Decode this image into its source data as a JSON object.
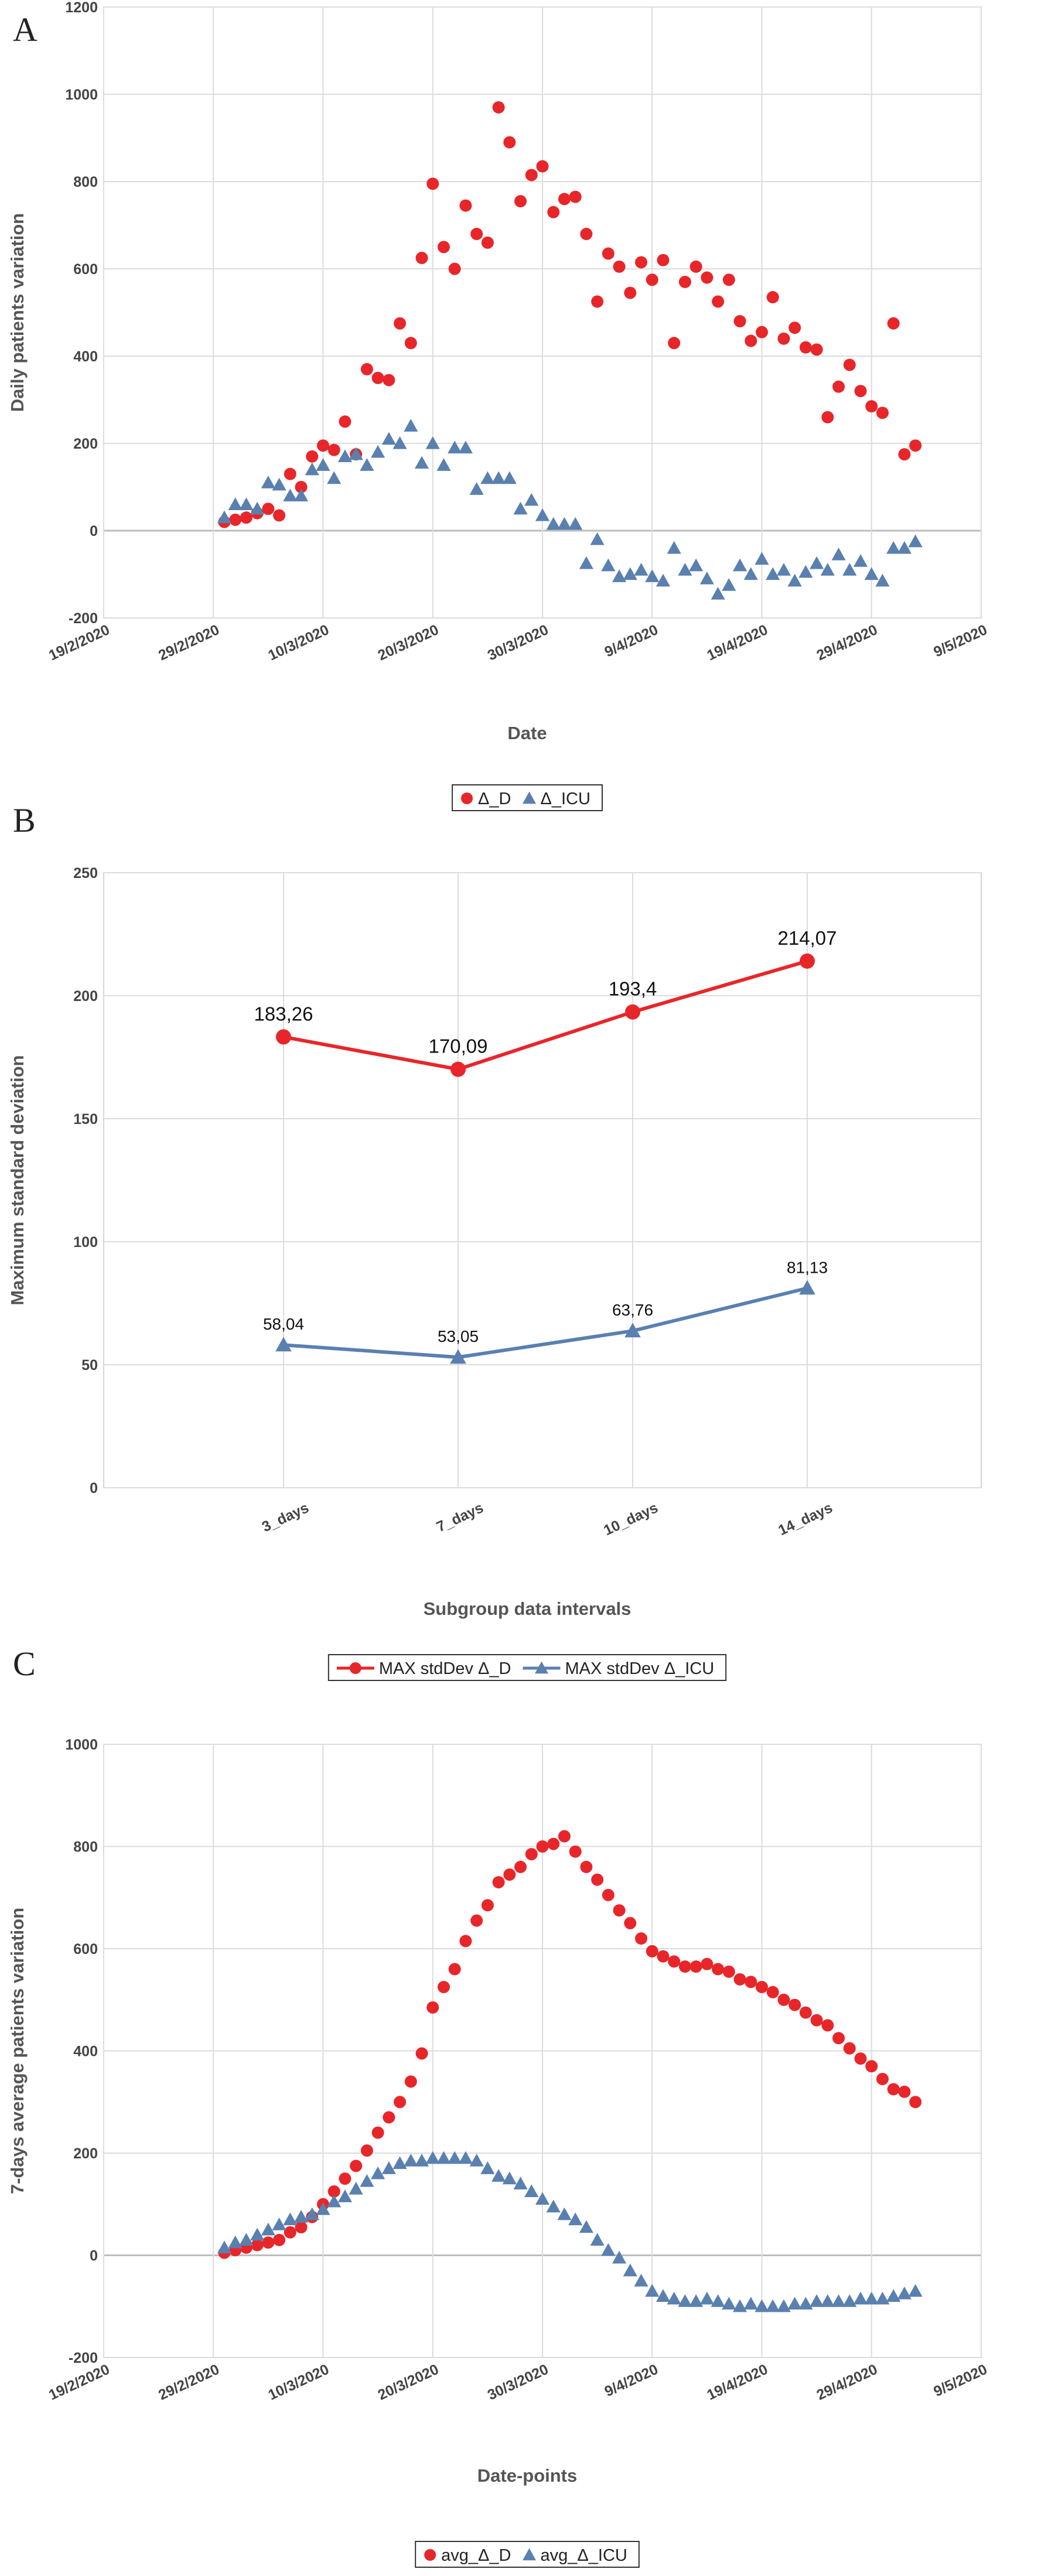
{
  "panels": [
    "A",
    "B",
    "C"
  ],
  "chart_data": [
    {
      "type": "scatter",
      "panel": "A",
      "xlabel": "Date",
      "ylabel": "Daily patients variation",
      "x_ticks": [
        "19/2/2020",
        "29/2/2020",
        "10/3/2020",
        "20/3/2020",
        "30/3/2020",
        "9/4/2020",
        "19/4/2020",
        "29/4/2020",
        "9/5/2020"
      ],
      "ylim": [
        -200,
        1200
      ],
      "y_ticks": [
        -200,
        0,
        200,
        400,
        600,
        800,
        1000,
        1200
      ],
      "grid": true,
      "legend": "bottom",
      "start_date": "2020-02-19",
      "series": [
        {
          "name": "Δ_D",
          "color": "#e8262a",
          "marker": "circle",
          "x": [
            "2020-03-01",
            "2020-03-02",
            "2020-03-03",
            "2020-03-04",
            "2020-03-05",
            "2020-03-06",
            "2020-03-07",
            "2020-03-08",
            "2020-03-09",
            "2020-03-10",
            "2020-03-11",
            "2020-03-12",
            "2020-03-13",
            "2020-03-14",
            "2020-03-15",
            "2020-03-16",
            "2020-03-17",
            "2020-03-18",
            "2020-03-19",
            "2020-03-20",
            "2020-03-21",
            "2020-03-22",
            "2020-03-23",
            "2020-03-24",
            "2020-03-25",
            "2020-03-26",
            "2020-03-27",
            "2020-03-28",
            "2020-03-29",
            "2020-03-30",
            "2020-03-31",
            "2020-04-01",
            "2020-04-02",
            "2020-04-03",
            "2020-04-04",
            "2020-04-05",
            "2020-04-06",
            "2020-04-07",
            "2020-04-08",
            "2020-04-09",
            "2020-04-10",
            "2020-04-11",
            "2020-04-12",
            "2020-04-13",
            "2020-04-14",
            "2020-04-15",
            "2020-04-16",
            "2020-04-17",
            "2020-04-18",
            "2020-04-19",
            "2020-04-20",
            "2020-04-21",
            "2020-04-22",
            "2020-04-23",
            "2020-04-24",
            "2020-04-25",
            "2020-04-26",
            "2020-04-27",
            "2020-04-28",
            "2020-04-29",
            "2020-04-30",
            "2020-05-01",
            "2020-05-02",
            "2020-05-03"
          ],
          "values": [
            20,
            25,
            30,
            40,
            50,
            35,
            130,
            100,
            170,
            195,
            185,
            250,
            175,
            370,
            350,
            345,
            475,
            430,
            625,
            795,
            650,
            600,
            745,
            680,
            660,
            970,
            890,
            755,
            815,
            835,
            730,
            760,
            765,
            680,
            525,
            635,
            605,
            545,
            615,
            575,
            620,
            430,
            570,
            605,
            580,
            525,
            575,
            480,
            435,
            455,
            535,
            440,
            465,
            420,
            415,
            260,
            330,
            380,
            320,
            285,
            270,
            475,
            175,
            195
          ]
        },
        {
          "name": "Δ_ICU",
          "color": "#5a80b0",
          "marker": "triangle",
          "x": [
            "2020-03-01",
            "2020-03-02",
            "2020-03-03",
            "2020-03-04",
            "2020-03-05",
            "2020-03-06",
            "2020-03-07",
            "2020-03-08",
            "2020-03-09",
            "2020-03-10",
            "2020-03-11",
            "2020-03-12",
            "2020-03-13",
            "2020-03-14",
            "2020-03-15",
            "2020-03-16",
            "2020-03-17",
            "2020-03-18",
            "2020-03-19",
            "2020-03-20",
            "2020-03-21",
            "2020-03-22",
            "2020-03-23",
            "2020-03-24",
            "2020-03-25",
            "2020-03-26",
            "2020-03-27",
            "2020-03-28",
            "2020-03-29",
            "2020-03-30",
            "2020-03-31",
            "2020-04-01",
            "2020-04-02",
            "2020-04-03",
            "2020-04-04",
            "2020-04-05",
            "2020-04-06",
            "2020-04-07",
            "2020-04-08",
            "2020-04-09",
            "2020-04-10",
            "2020-04-11",
            "2020-04-12",
            "2020-04-13",
            "2020-04-14",
            "2020-04-15",
            "2020-04-16",
            "2020-04-17",
            "2020-04-18",
            "2020-04-19",
            "2020-04-20",
            "2020-04-21",
            "2020-04-22",
            "2020-04-23",
            "2020-04-24",
            "2020-04-25",
            "2020-04-26",
            "2020-04-27",
            "2020-04-28",
            "2020-04-29",
            "2020-04-30",
            "2020-05-01",
            "2020-05-02",
            "2020-05-03"
          ],
          "values": [
            30,
            60,
            60,
            50,
            110,
            105,
            80,
            80,
            140,
            150,
            120,
            170,
            175,
            150,
            180,
            210,
            200,
            240,
            155,
            200,
            150,
            190,
            190,
            95,
            120,
            120,
            120,
            50,
            70,
            35,
            15,
            15,
            15,
            -75,
            -20,
            -80,
            -105,
            -100,
            -90,
            -105,
            -115,
            -40,
            -90,
            -80,
            -110,
            -145,
            -125,
            -80,
            -100,
            -65,
            -100,
            -90,
            -115,
            -95,
            -75,
            -90,
            -55,
            -90,
            -70,
            -100,
            -115,
            -40,
            -40,
            -25
          ]
        }
      ]
    },
    {
      "type": "line",
      "panel": "B",
      "xlabel": "Subgroup data intervals",
      "ylabel": "Maximum standard deviation",
      "categories": [
        "3_days",
        "7_days",
        "10_days",
        "14_days"
      ],
      "ylim": [
        0,
        250
      ],
      "y_ticks": [
        0,
        50,
        100,
        150,
        200,
        250
      ],
      "grid": true,
      "legend": "bottom",
      "series": [
        {
          "name": "MAX stdDev Δ_D",
          "color": "#e8262a",
          "marker": "circle",
          "values": [
            183.26,
            170.09,
            193.4,
            214.07
          ],
          "labels": [
            "183,26",
            "170,09",
            "193,4",
            "214,07"
          ]
        },
        {
          "name": "MAX stdDev Δ_ICU",
          "color": "#5a80b0",
          "marker": "triangle",
          "values": [
            58.04,
            53.05,
            63.76,
            81.13
          ],
          "labels": [
            "58,04",
            "53,05",
            "63,76",
            "81,13"
          ]
        }
      ]
    },
    {
      "type": "scatter",
      "panel": "C",
      "xlabel": "Date-points",
      "ylabel": "7-days average patients variation",
      "x_ticks": [
        "19/2/2020",
        "29/2/2020",
        "10/3/2020",
        "20/3/2020",
        "30/3/2020",
        "9/4/2020",
        "19/4/2020",
        "29/4/2020",
        "9/5/2020"
      ],
      "ylim": [
        -200,
        1000
      ],
      "y_ticks": [
        -200,
        0,
        200,
        400,
        600,
        800,
        1000
      ],
      "grid": true,
      "legend": "bottom",
      "start_date": "2020-02-19",
      "series": [
        {
          "name": "avg_Δ_D",
          "color": "#e8262a",
          "marker": "circle",
          "x": [
            "2020-03-01",
            "2020-03-02",
            "2020-03-03",
            "2020-03-04",
            "2020-03-05",
            "2020-03-06",
            "2020-03-07",
            "2020-03-08",
            "2020-03-09",
            "2020-03-10",
            "2020-03-11",
            "2020-03-12",
            "2020-03-13",
            "2020-03-14",
            "2020-03-15",
            "2020-03-16",
            "2020-03-17",
            "2020-03-18",
            "2020-03-19",
            "2020-03-20",
            "2020-03-21",
            "2020-03-22",
            "2020-03-23",
            "2020-03-24",
            "2020-03-25",
            "2020-03-26",
            "2020-03-27",
            "2020-03-28",
            "2020-03-29",
            "2020-03-30",
            "2020-03-31",
            "2020-04-01",
            "2020-04-02",
            "2020-04-03",
            "2020-04-04",
            "2020-04-05",
            "2020-04-06",
            "2020-04-07",
            "2020-04-08",
            "2020-04-09",
            "2020-04-10",
            "2020-04-11",
            "2020-04-12",
            "2020-04-13",
            "2020-04-14",
            "2020-04-15",
            "2020-04-16",
            "2020-04-17",
            "2020-04-18",
            "2020-04-19",
            "2020-04-20",
            "2020-04-21",
            "2020-04-22",
            "2020-04-23",
            "2020-04-24",
            "2020-04-25",
            "2020-04-26",
            "2020-04-27",
            "2020-04-28",
            "2020-04-29",
            "2020-04-30",
            "2020-05-01",
            "2020-05-02",
            "2020-05-03"
          ],
          "values": [
            5,
            10,
            15,
            20,
            25,
            30,
            45,
            55,
            75,
            100,
            125,
            150,
            175,
            205,
            240,
            270,
            300,
            340,
            395,
            485,
            525,
            560,
            615,
            655,
            685,
            730,
            745,
            760,
            785,
            800,
            805,
            820,
            790,
            760,
            735,
            705,
            675,
            650,
            620,
            595,
            585,
            575,
            565,
            565,
            570,
            560,
            555,
            540,
            535,
            525,
            515,
            500,
            490,
            475,
            460,
            450,
            425,
            405,
            385,
            370,
            345,
            325,
            320,
            300
          ]
        },
        {
          "name": "avg_Δ_ICU",
          "color": "#5a80b0",
          "marker": "triangle",
          "x": [
            "2020-03-01",
            "2020-03-02",
            "2020-03-03",
            "2020-03-04",
            "2020-03-05",
            "2020-03-06",
            "2020-03-07",
            "2020-03-08",
            "2020-03-09",
            "2020-03-10",
            "2020-03-11",
            "2020-03-12",
            "2020-03-13",
            "2020-03-14",
            "2020-03-15",
            "2020-03-16",
            "2020-03-17",
            "2020-03-18",
            "2020-03-19",
            "2020-03-20",
            "2020-03-21",
            "2020-03-22",
            "2020-03-23",
            "2020-03-24",
            "2020-03-25",
            "2020-03-26",
            "2020-03-27",
            "2020-03-28",
            "2020-03-29",
            "2020-03-30",
            "2020-03-31",
            "2020-04-01",
            "2020-04-02",
            "2020-04-03",
            "2020-04-04",
            "2020-04-05",
            "2020-04-06",
            "2020-04-07",
            "2020-04-08",
            "2020-04-09",
            "2020-04-10",
            "2020-04-11",
            "2020-04-12",
            "2020-04-13",
            "2020-04-14",
            "2020-04-15",
            "2020-04-16",
            "2020-04-17",
            "2020-04-18",
            "2020-04-19",
            "2020-04-20",
            "2020-04-21",
            "2020-04-22",
            "2020-04-23",
            "2020-04-24",
            "2020-04-25",
            "2020-04-26",
            "2020-04-27",
            "2020-04-28",
            "2020-04-29",
            "2020-04-30",
            "2020-05-01",
            "2020-05-02",
            "2020-05-03"
          ],
          "values": [
            15,
            25,
            30,
            40,
            50,
            60,
            70,
            75,
            80,
            90,
            105,
            115,
            130,
            145,
            160,
            170,
            180,
            185,
            185,
            190,
            190,
            190,
            190,
            185,
            170,
            155,
            150,
            140,
            125,
            110,
            95,
            80,
            70,
            55,
            30,
            10,
            -5,
            -30,
            -50,
            -70,
            -80,
            -85,
            -90,
            -90,
            -85,
            -90,
            -95,
            -100,
            -95,
            -100,
            -100,
            -100,
            -95,
            -95,
            -90,
            -90,
            -90,
            -90,
            -85,
            -85,
            -85,
            -80,
            -75,
            -70
          ]
        }
      ]
    }
  ]
}
